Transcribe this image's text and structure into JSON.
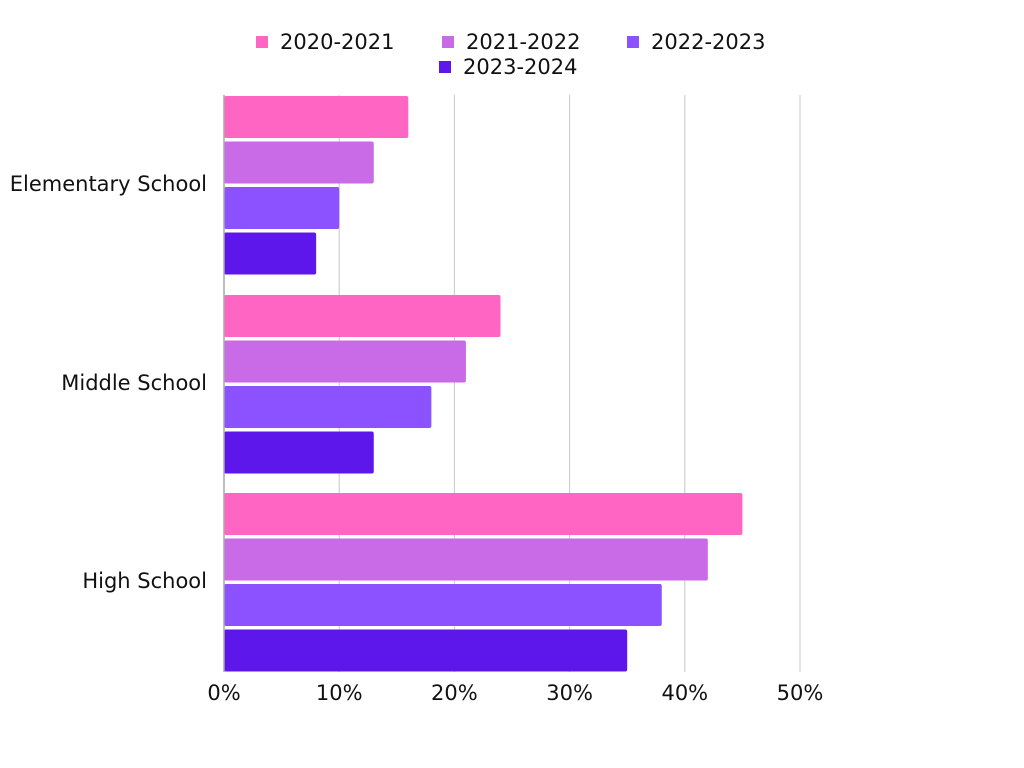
{
  "chart_data": {
    "type": "bar",
    "orientation": "horizontal",
    "title": "",
    "xlabel": "",
    "ylabel": "",
    "categories": [
      "Elementary School",
      "Middle School",
      "High School"
    ],
    "series": [
      {
        "name": "2020-2021",
        "color": "#ff66c4",
        "values": [
          16,
          24,
          45
        ]
      },
      {
        "name": "2021-2022",
        "color": "#c96ae6",
        "values": [
          13,
          21,
          42
        ]
      },
      {
        "name": "2022-2023",
        "color": "#8c52ff",
        "values": [
          10,
          18,
          38
        ]
      },
      {
        "name": "2023-2024",
        "color": "#5e17eb",
        "values": [
          8,
          13,
          35
        ]
      }
    ],
    "xlim": [
      0,
      50
    ],
    "xticks": [
      0,
      10,
      20,
      30,
      40,
      50
    ],
    "xtick_labels": [
      "0%",
      "10%",
      "20%",
      "30%",
      "40%",
      "50%"
    ],
    "grid": true,
    "legend_position": "top-center"
  }
}
